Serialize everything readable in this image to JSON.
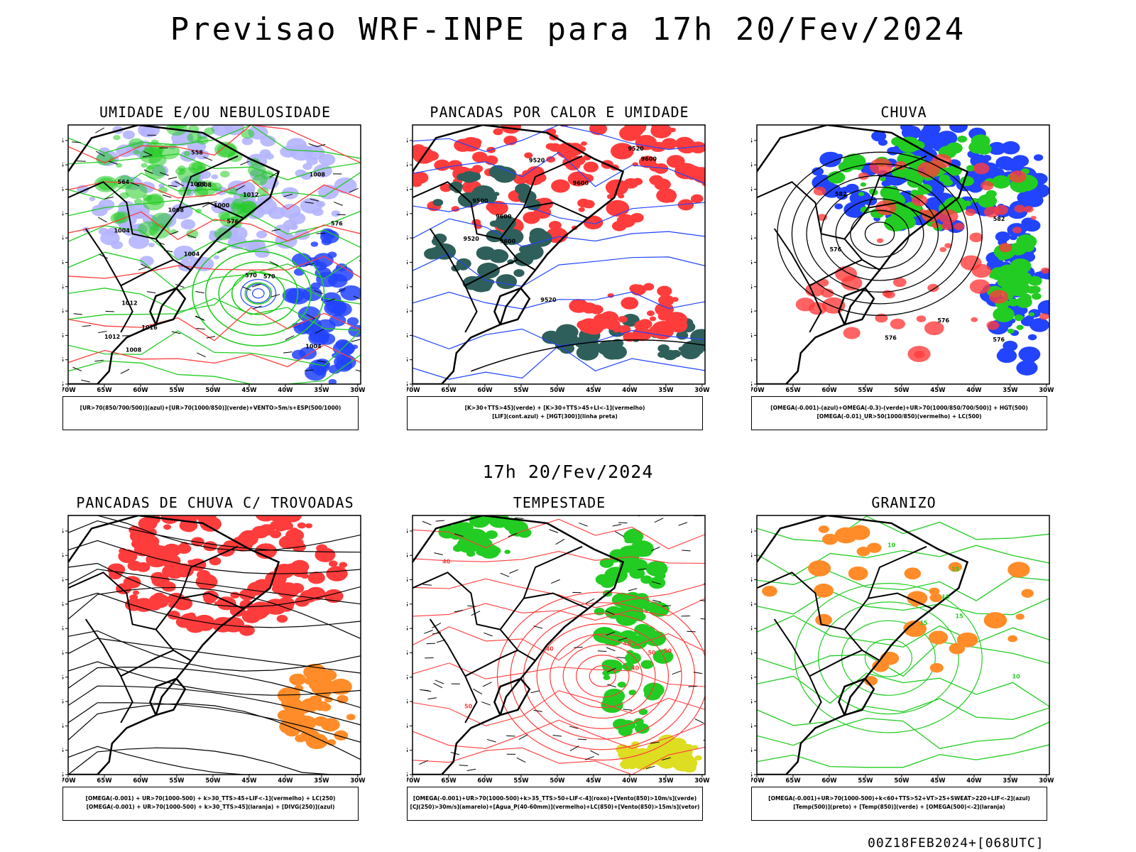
{
  "title": "Previsao WRF-INPE  para 17h 20/Fev/2024",
  "mid_time": "17h 20/Fev/2024",
  "footer": "00Z18FEB2024+[068UTC]",
  "lat_ticks": [
    "12S",
    "15S",
    "18S",
    "21S",
    "24S",
    "27S",
    "30S",
    "33S",
    "36S",
    "39S",
    "42S"
  ],
  "lon_ticks": [
    "70W",
    "65W",
    "60W",
    "55W",
    "50W",
    "45W",
    "40W",
    "35W",
    "30W"
  ],
  "colors": {
    "green": "#22cc22",
    "red": "#ff3c3c",
    "blue": "#2244ff",
    "light_blue": "#b4b4ff",
    "dark_teal": "#2f5f5a",
    "orange": "#ff8c28",
    "yellow": "#dddd22",
    "black": "#000000"
  },
  "panels": [
    {
      "id": "umidade",
      "title": "UMIDADE E/OU NEBULOSIDADE",
      "legend": [
        "[UR>70(850/700/500)](azul)+[UR>70(1000/850)](verde)+VENTO>5m/s+ESP(500/1000)"
      ],
      "contour_labels": [
        "1004",
        "1004",
        "1008",
        "1004",
        "1012",
        "1008",
        "1008",
        "1000",
        "1012",
        "1008",
        "1012",
        "1016",
        "1008",
        "576",
        "570",
        "564",
        "558",
        "576",
        "570"
      ]
    },
    {
      "id": "pancadas-calor",
      "title": "PANCADAS POR CALOR E UMIDADE",
      "legend": [
        "[K>30+TTS>45](verde) + [K>30+TTS>45+LI<-1](vermelho)",
        "[LIF](cont.azul) + [HGT(300)](linha preta)"
      ],
      "contour_labels": [
        "9600",
        "9600",
        "9520",
        "9500",
        "9600",
        "9520",
        "9600",
        "9520",
        "9520"
      ]
    },
    {
      "id": "chuva",
      "title": "CHUVA",
      "legend": [
        "[OMEGA(-0.001)-(azul)+OMEGA(-0.3)-(verde)+UR>70(1000/850/700/500)] + HGT(500)",
        "[OMEGA(-0.01)_UR>50(1000/850)(vermelho) + LC(500)"
      ],
      "contour_labels": [
        "576",
        "576",
        "582",
        "576",
        "576",
        "582"
      ]
    },
    {
      "id": "pancadas-trovoadas",
      "title": "PANCADAS DE CHUVA C/ TROVOADAS",
      "legend": [
        "[OMEGA(-0.001) + UR>70(1000-500) + k>30_TTS>45+LIF<-1](vermelho) + LC(250)",
        "[OMEGA(-0.001) + UR>70(1000-500) + k>30_TTS>45](laranja) + [DIVG(250)](azul)"
      ],
      "contour_labels": []
    },
    {
      "id": "tempestade",
      "title": "TEMPESTADE",
      "legend": [
        "[OMEGA(-0.001)+UR>70(1000-500)+k>35_TTS>50+LIF<-4](roxo)+[Vento(850)>10m/s](verde)",
        "[CJ(250)>30m/s](amarelo)+[Agua_P(40-60mm)](vermelho)+LC(850)+[Vento(850)>15m/s](vetor)"
      ],
      "contour_labels": [
        "40",
        "50",
        "40",
        "40",
        "50",
        "50",
        "40"
      ]
    },
    {
      "id": "granizo",
      "title": "GRANIZO",
      "legend": [
        "[OMEGA(-0.001)+UR>70(1000-500)+k<60+TTS>52+VT>25+SWEAT>220+LIF<-2](azul)",
        "[Temp(500)](preto) + [Temp(850)](verde) + [OMEGA(500)<-2](laranja)"
      ],
      "contour_labels": [
        "15",
        "15",
        "10",
        "15",
        "15",
        "10"
      ]
    }
  ]
}
